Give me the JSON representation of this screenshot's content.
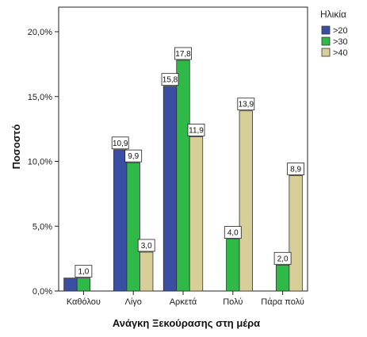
{
  "chart_data": {
    "type": "bar",
    "title": "",
    "xlabel": "Ανάγκη Ξεκούρασης στη μέρα",
    "ylabel": "Ποσοστό",
    "categories": [
      "Καθόλου",
      "Λίγο",
      "Αρκετά",
      "Πολύ",
      "Πάρα πολύ"
    ],
    "series": [
      {
        "name": ">20",
        "color": "#3a4fa3",
        "values": [
          1.0,
          10.9,
          15.8,
          null,
          null
        ]
      },
      {
        "name": ">30",
        "color": "#2fba47",
        "values": [
          1.0,
          9.9,
          17.8,
          4.0,
          2.0
        ]
      },
      {
        "name": ">40",
        "color": "#d8cf98",
        "values": [
          null,
          3.0,
          11.9,
          13.9,
          8.9
        ]
      }
    ],
    "data_labels": [
      [
        null,
        "10,9",
        "15,8",
        null,
        null
      ],
      [
        "1,0",
        "9,9",
        "17,8",
        "4,0",
        "2,0"
      ],
      [
        null,
        "3,0",
        "11,9",
        "13,9",
        "8,9"
      ]
    ],
    "y_ticks": [
      0,
      5,
      10,
      15,
      20
    ],
    "y_tick_labels": [
      "0,0%",
      "5,0%",
      "10,0%",
      "15,0%",
      "20,0%"
    ],
    "ylim": [
      0,
      20
    ],
    "grid": false,
    "legend": {
      "title": "Ηλικία",
      "position": "top-right"
    }
  }
}
